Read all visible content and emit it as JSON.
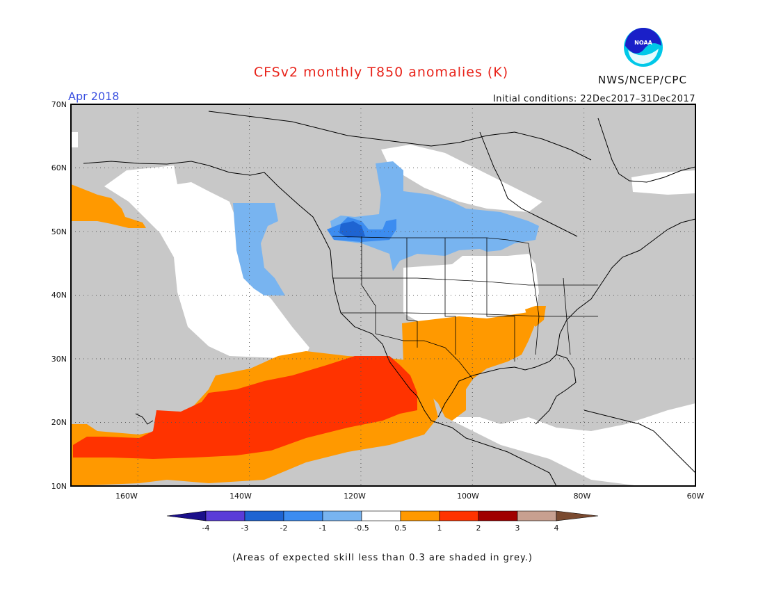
{
  "header": {
    "title": "CFSv2 monthly T850 anomalies (K)",
    "month": "Apr 2018",
    "initial_conditions": "Initial conditions: 22Dec2017–31Dec2017",
    "org": "NWS/NCEP/CPC",
    "logo_text": "NOAA"
  },
  "map": {
    "lon_range": [
      -172,
      -60
    ],
    "lat_range": [
      10,
      70
    ],
    "lat_labels": [
      "70N",
      "60N",
      "50N",
      "40N",
      "30N",
      "20N",
      "10N"
    ],
    "lon_labels": [
      "160W",
      "140W",
      "120W",
      "100W",
      "80W",
      "60W"
    ],
    "colors": {
      "grey": "#c8c8c8",
      "white": "#ffffff",
      "orange": "#ff9900",
      "red": "#ff3300",
      "light_blue": "#78b4f0",
      "mid_blue": "#3c8cf0",
      "dark_blue": "#1e64d2"
    }
  },
  "colorbar": {
    "labels": [
      "-4",
      "-3",
      "-2",
      "-1",
      "-0.5",
      "0.5",
      "1",
      "2",
      "3",
      "4"
    ],
    "colors": [
      "#1a0f8a",
      "#5a3cd8",
      "#1e64d2",
      "#3c8cf0",
      "#78b4f0",
      "#ffffff",
      "#ff9900",
      "#ff3300",
      "#a00000",
      "#c8a090",
      "#7a4a30"
    ]
  },
  "footer": {
    "note": "(Areas of expected skill less than 0.3 are shaded in grey.)"
  }
}
